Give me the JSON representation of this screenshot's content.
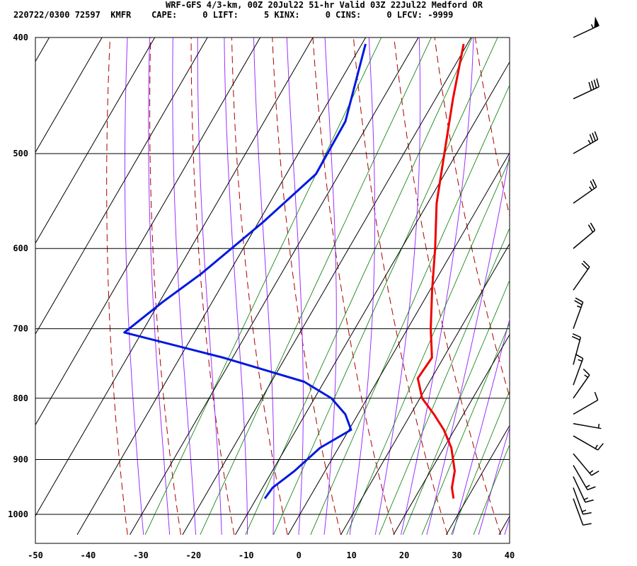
{
  "header": {
    "line1": "WRF-GFS 4/3-km, 00Z 20Jul22 51-hr Valid 03Z 22Jul22 Medford OR",
    "line2": "220722/0300 72597  KMFR    CAPE:     0 LIFT:     5 KINX:     0 CINS:     0 LFCV: -9999"
  },
  "chart_data": {
    "type": "line",
    "title": "WRF-GFS 4/3-km, 00Z 20Jul22 51-hr Valid 03Z 22Jul22 Medford OR",
    "xlabel": "",
    "ylabel": "",
    "x_ticks": [
      "-50",
      "-40",
      "-30",
      "-20",
      "-10",
      "0",
      "10",
      "20",
      "30",
      "40"
    ],
    "y_ticks": [
      "400",
      "500",
      "600",
      "700",
      "800",
      "900",
      "1000"
    ],
    "xlim": [
      -50,
      40
    ],
    "ylim": [
      1040,
      400
    ],
    "grid": true,
    "legend": "none",
    "colors": {
      "temperature": "#ee0000",
      "dewpoint": "#0018e0",
      "dry_adiabat": "#aa0000",
      "moist_adiabat": "#9b30ff",
      "mixing_ratio": "#007a00",
      "barb": "#000000"
    },
    "series": [
      {
        "pressure": [
          405,
          450,
          500,
          550,
          600,
          650,
          700,
          740,
          770,
          800,
          825,
          850,
          880,
          920,
          950,
          970
        ],
        "values": [
          -20.7,
          -16.7,
          -12.3,
          -8.3,
          -3.6,
          0.4,
          4.4,
          7.8,
          7.4,
          10.4,
          14.4,
          18.0,
          21.4,
          24.6,
          25.9,
          27.4
        ]
      },
      {
        "pressure": [
          405,
          470,
          520,
          570,
          630,
          665,
          705,
          740,
          775,
          800,
          825,
          850,
          880,
          920,
          950,
          970
        ],
        "values": [
          -39.3,
          -34.6,
          -34.4,
          -39.1,
          -45.2,
          -49.4,
          -53.3,
          -31.8,
          -13.8,
          -6.8,
          -2.4,
          0.4,
          -3.5,
          -5.8,
          -8.1,
          -8.4
        ]
      }
    ],
    "wind_barbs": [
      {
        "pressure": 400,
        "speed_kt": 55,
        "direction_deg": 245
      },
      {
        "pressure": 450,
        "speed_kt": 40,
        "direction_deg": 245
      },
      {
        "pressure": 500,
        "speed_kt": 35,
        "direction_deg": 240
      },
      {
        "pressure": 550,
        "speed_kt": 25,
        "direction_deg": 235
      },
      {
        "pressure": 600,
        "speed_kt": 20,
        "direction_deg": 230
      },
      {
        "pressure": 650,
        "speed_kt": 20,
        "direction_deg": 215
      },
      {
        "pressure": 700,
        "speed_kt": 25,
        "direction_deg": 200
      },
      {
        "pressure": 750,
        "speed_kt": 20,
        "direction_deg": 195
      },
      {
        "pressure": 780,
        "speed_kt": 15,
        "direction_deg": 200
      },
      {
        "pressure": 800,
        "speed_kt": 15,
        "direction_deg": 215
      },
      {
        "pressure": 825,
        "speed_kt": 10,
        "direction_deg": 240
      },
      {
        "pressure": 840,
        "speed_kt": 5,
        "direction_deg": 280
      },
      {
        "pressure": 860,
        "speed_kt": 15,
        "direction_deg": 300
      },
      {
        "pressure": 890,
        "speed_kt": 15,
        "direction_deg": 320
      },
      {
        "pressure": 910,
        "speed_kt": 15,
        "direction_deg": 330
      },
      {
        "pressure": 930,
        "speed_kt": 15,
        "direction_deg": 335
      },
      {
        "pressure": 950,
        "speed_kt": 15,
        "direction_deg": 340
      },
      {
        "pressure": 970,
        "speed_kt": 10,
        "direction_deg": 340
      }
    ]
  }
}
